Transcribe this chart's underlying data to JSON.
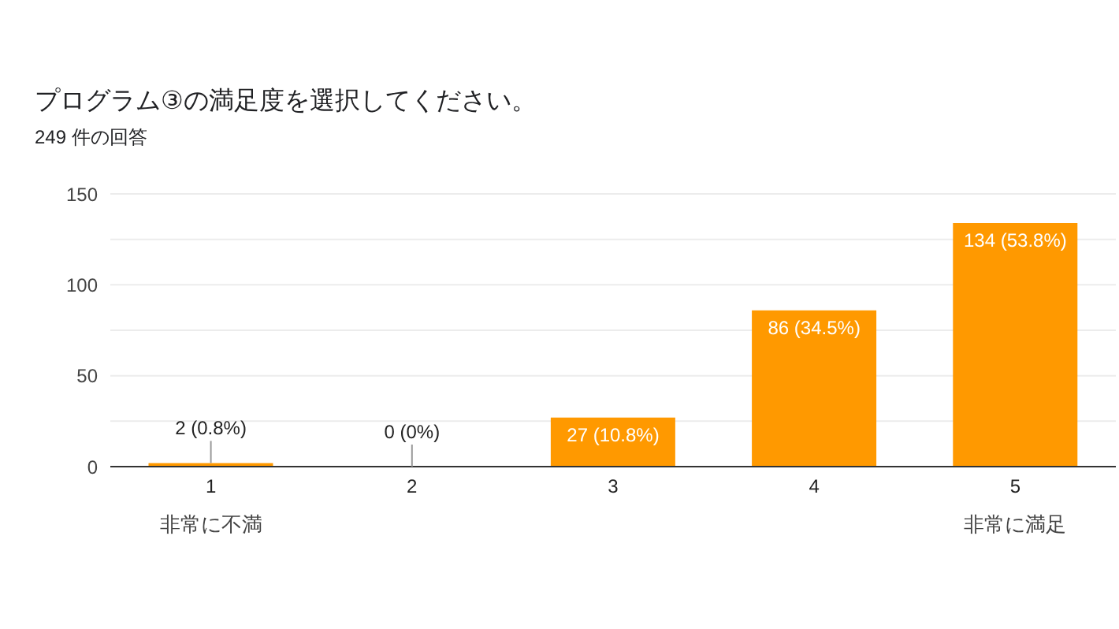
{
  "chart_data": {
    "type": "bar",
    "title": "プログラム③の満足度を選択してください。",
    "subtitle": "249 件の回答",
    "categories": [
      "1",
      "2",
      "3",
      "4",
      "5"
    ],
    "values": [
      2,
      0,
      27,
      86,
      134
    ],
    "value_labels": [
      "2 (0.8%)",
      "0 (0%)",
      "27 (10.8%)",
      "86 (34.5%)",
      "134 (53.8%)"
    ],
    "color": "#ff9900",
    "ylim": [
      0,
      150
    ],
    "yticks": [
      0,
      {
        "value": 25,
        "label": null
      },
      50,
      {
        "value": 75,
        "label": null
      },
      100,
      {
        "value": 125,
        "label": null
      },
      150
    ],
    "grid": "y",
    "annotations": [
      "非常に不満",
      "非常に満足"
    ]
  }
}
